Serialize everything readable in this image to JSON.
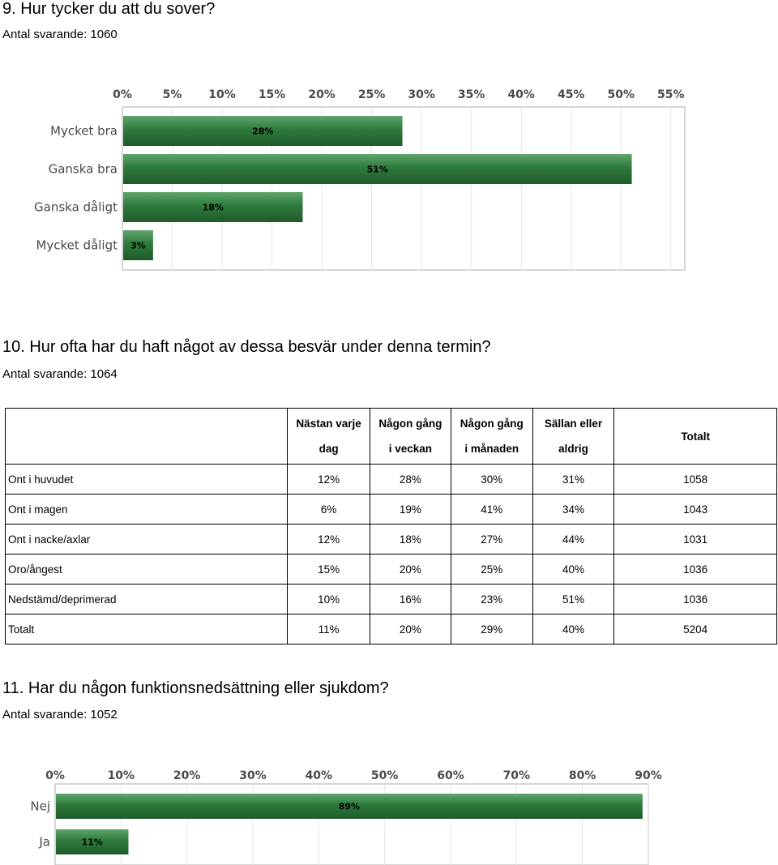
{
  "q9": {
    "title": "9. Hur tycker du att du sover?",
    "count": "Antal svarande: 1060",
    "chart_data": {
      "type": "bar",
      "orientation": "horizontal",
      "categories": [
        "Mycket bra",
        "Ganska bra",
        "Ganska dåligt",
        "Mycket dåligt"
      ],
      "values": [
        28,
        51,
        18,
        3
      ],
      "value_labels": [
        "28%",
        "51%",
        "18%",
        "3%"
      ],
      "xlim": [
        0,
        56.4
      ],
      "ticks": [
        0,
        5,
        10,
        15,
        20,
        25,
        30,
        35,
        40,
        45,
        50,
        55
      ],
      "tick_labels": [
        "0%",
        "5%",
        "10%",
        "15%",
        "20%",
        "25%",
        "30%",
        "35%",
        "40%",
        "45%",
        "50%",
        "55%"
      ],
      "grid": true,
      "bar_color": "#2e7a3c"
    }
  },
  "q10": {
    "title": "10. Hur ofta har du haft något av dessa besvär under denna termin?",
    "count": "Antal svarande: 1064",
    "table": {
      "headers": [
        {
          "line1": "",
          "line2": ""
        },
        {
          "line1": "Nästan varje",
          "line2": "dag"
        },
        {
          "line1": "Någon gång",
          "line2": "i veckan"
        },
        {
          "line1": "Någon gång",
          "line2": "i månaden"
        },
        {
          "line1": "Sällan eller",
          "line2": "aldrig"
        },
        {
          "line1": "Totalt",
          "line2": ""
        }
      ],
      "rows": [
        [
          "Ont i huvudet",
          "12%",
          "28%",
          "30%",
          "31%",
          "1058"
        ],
        [
          "Ont i magen",
          "6%",
          "19%",
          "41%",
          "34%",
          "1043"
        ],
        [
          "Ont i nacke/axlar",
          "12%",
          "18%",
          "27%",
          "44%",
          "1031"
        ],
        [
          "Oro/ångest",
          "15%",
          "20%",
          "25%",
          "40%",
          "1036"
        ],
        [
          "Nedstämd/deprimerad",
          "10%",
          "16%",
          "23%",
          "51%",
          "1036"
        ],
        [
          "Totalt",
          "11%",
          "20%",
          "29%",
          "40%",
          "5204"
        ]
      ]
    }
  },
  "q11": {
    "title": "11. Har du någon funktionsnedsättning eller sjukdom?",
    "count": "Antal svarande: 1052",
    "chart_data": {
      "type": "bar",
      "orientation": "horizontal",
      "categories": [
        "Nej",
        "Ja"
      ],
      "values": [
        89,
        11
      ],
      "value_labels": [
        "89%",
        "11%"
      ],
      "xlim": [
        0,
        90
      ],
      "ticks": [
        0,
        10,
        20,
        30,
        40,
        50,
        60,
        70,
        80,
        90
      ],
      "tick_labels": [
        "0%",
        "10%",
        "20%",
        "30%",
        "40%",
        "50%",
        "60%",
        "70%",
        "80%",
        "90%"
      ],
      "grid": true,
      "bar_color": "#2e7a3c"
    }
  }
}
